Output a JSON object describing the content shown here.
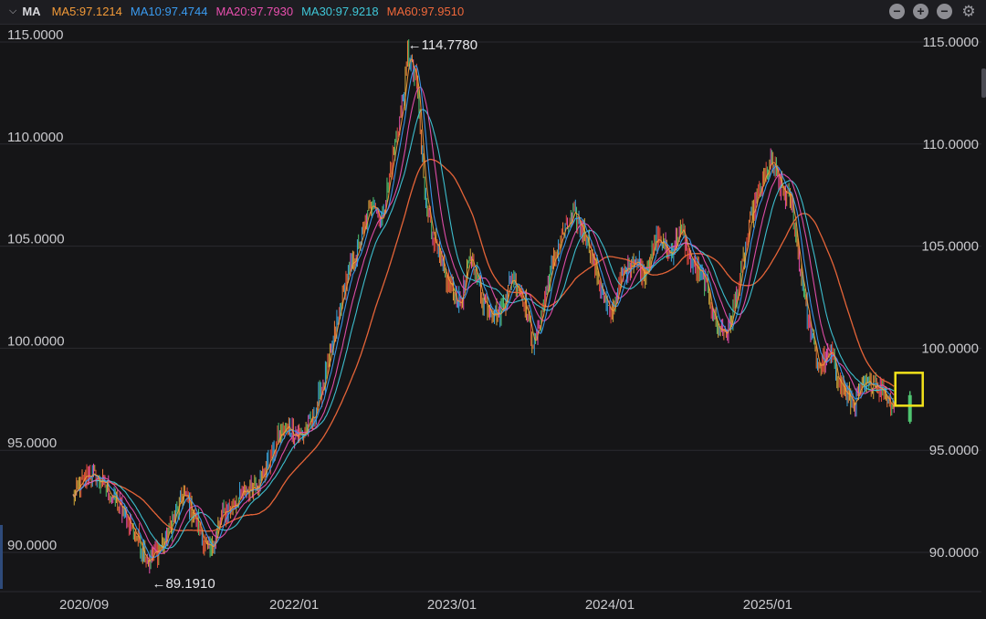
{
  "toolbar": {
    "indicator": "MA",
    "ma": [
      {
        "label": "MA5:97.1214",
        "color": "#f29a38"
      },
      {
        "label": "MA10:97.4744",
        "color": "#3a9cf2"
      },
      {
        "label": "MA20:97.7930",
        "color": "#e84fae"
      },
      {
        "label": "MA30:97.9218",
        "color": "#3fc7d8"
      },
      {
        "label": "MA60:97.9510",
        "color": "#f0683a"
      }
    ],
    "buttons": {
      "zoom_out": "−",
      "zoom_in": "+",
      "minimize": "−",
      "settings": "⚙"
    }
  },
  "chart_data": {
    "type": "candlestick",
    "y_ticks": [
      "115.0000",
      "110.0000",
      "105.0000",
      "100.0000",
      "95.0000",
      "90.0000"
    ],
    "ylim": [
      88.0,
      116.0
    ],
    "x_ticks": [
      {
        "label": "2020/09",
        "x": 2020.67
      },
      {
        "label": "2022/01",
        "x": 2022.0
      },
      {
        "label": "2023/01",
        "x": 2023.0
      },
      {
        "label": "2024/01",
        "x": 2024.0
      },
      {
        "label": "2025/01",
        "x": 2025.0
      }
    ],
    "xlim": [
      2020.6,
      2025.92
    ],
    "annotations": [
      {
        "label": "←114.7780",
        "x": 2022.72,
        "y": 114.778
      },
      {
        "label": "←89.1910",
        "x": 2021.1,
        "y": 89.191
      }
    ],
    "price_path": [
      [
        2020.6,
        92.7
      ],
      [
        2020.7,
        93.9
      ],
      [
        2020.8,
        93.3
      ],
      [
        2020.95,
        91.6
      ],
      [
        2021.08,
        89.6
      ],
      [
        2021.18,
        90.5
      ],
      [
        2021.3,
        92.9
      ],
      [
        2021.4,
        91.2
      ],
      [
        2021.46,
        89.9
      ],
      [
        2021.55,
        91.9
      ],
      [
        2021.7,
        93.0
      ],
      [
        2021.8,
        93.7
      ],
      [
        2021.9,
        95.6
      ],
      [
        2021.95,
        96.1
      ],
      [
        2022.05,
        95.7
      ],
      [
        2022.12,
        96.6
      ],
      [
        2022.22,
        99.2
      ],
      [
        2022.32,
        103.1
      ],
      [
        2022.42,
        105.2
      ],
      [
        2022.5,
        107.4
      ],
      [
        2022.55,
        106.1
      ],
      [
        2022.62,
        109.1
      ],
      [
        2022.7,
        112.6
      ],
      [
        2022.72,
        114.5
      ],
      [
        2022.78,
        112.8
      ],
      [
        2022.82,
        108.2
      ],
      [
        2022.88,
        105.4
      ],
      [
        2022.95,
        103.6
      ],
      [
        2023.05,
        102.1
      ],
      [
        2023.12,
        104.6
      ],
      [
        2023.2,
        102.3
      ],
      [
        2023.3,
        101.6
      ],
      [
        2023.38,
        103.5
      ],
      [
        2023.45,
        102.6
      ],
      [
        2023.52,
        100.1
      ],
      [
        2023.62,
        103.6
      ],
      [
        2023.7,
        105.6
      ],
      [
        2023.78,
        106.5
      ],
      [
        2023.85,
        105.5
      ],
      [
        2023.92,
        103.6
      ],
      [
        2024.0,
        101.5
      ],
      [
        2024.08,
        103.6
      ],
      [
        2024.15,
        104.4
      ],
      [
        2024.22,
        103.7
      ],
      [
        2024.3,
        105.4
      ],
      [
        2024.38,
        104.6
      ],
      [
        2024.45,
        105.8
      ],
      [
        2024.52,
        104.2
      ],
      [
        2024.6,
        103.3
      ],
      [
        2024.68,
        101.0
      ],
      [
        2024.75,
        100.8
      ],
      [
        2024.82,
        103.2
      ],
      [
        2024.9,
        106.6
      ],
      [
        2024.98,
        108.3
      ],
      [
        2025.02,
        109.2
      ],
      [
        2025.08,
        107.9
      ],
      [
        2025.15,
        107.2
      ],
      [
        2025.2,
        104.2
      ],
      [
        2025.26,
        101.2
      ],
      [
        2025.32,
        99.1
      ],
      [
        2025.4,
        99.7
      ],
      [
        2025.48,
        97.9
      ],
      [
        2025.54,
        97.3
      ],
      [
        2025.6,
        98.0
      ],
      [
        2025.68,
        98.4
      ],
      [
        2025.76,
        97.6
      ],
      [
        2025.8,
        97.1
      ]
    ],
    "last_candle": {
      "x": 2025.82,
      "open": 97.7,
      "close": 96.4,
      "high": 97.9,
      "low": 96.3
    }
  }
}
